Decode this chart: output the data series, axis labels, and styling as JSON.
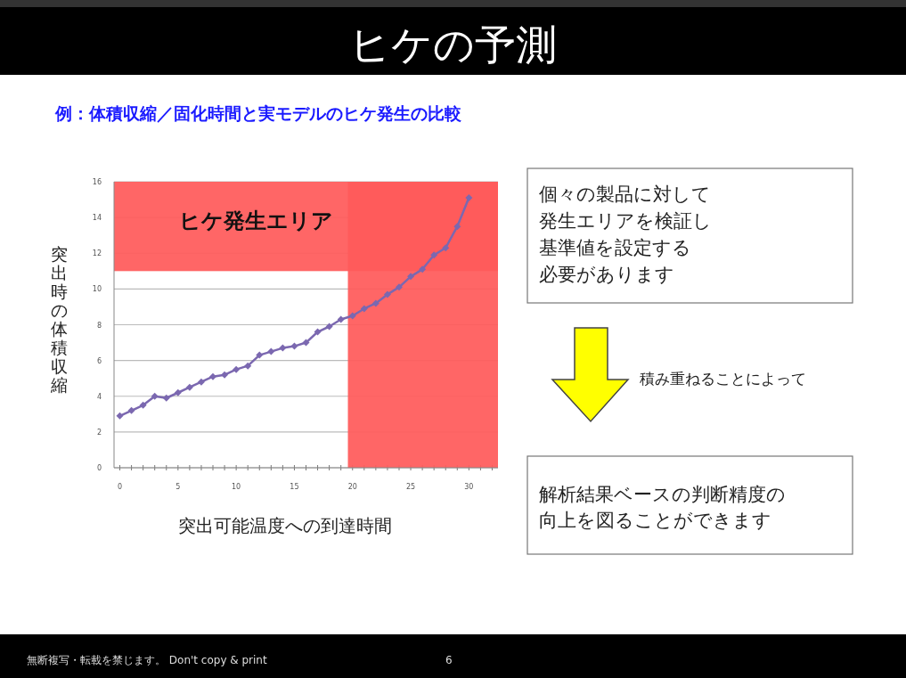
{
  "chart_data": {
    "type": "line",
    "title": "ヒケの予測",
    "subtitle": "例：体積収縮／固化時間と実モデルのヒケ発生の比較",
    "xlabel": "突出可能温度への到達時間",
    "ylabel": "突出時の体積収縮",
    "x": [
      0,
      1,
      2,
      3,
      4,
      5,
      6,
      7,
      8,
      9,
      10,
      11,
      12,
      13,
      14,
      15,
      16,
      17,
      18,
      19,
      20,
      21,
      22,
      23,
      24,
      25,
      26,
      27,
      28,
      29,
      30
    ],
    "series": [
      {
        "color": "#7b68b0",
        "values": [
          2.9,
          3.2,
          3.5,
          4.0,
          3.9,
          4.2,
          4.5,
          4.8,
          5.1,
          5.2,
          5.5,
          5.7,
          6.3,
          6.5,
          6.7,
          6.8,
          7.0,
          7.6,
          7.9,
          8.3,
          8.5,
          8.9,
          9.2,
          9.7,
          10.1,
          10.7,
          11.1,
          11.9,
          12.3,
          13.5,
          15.1
        ]
      }
    ],
    "xlim": [
      -0.5,
      32.5
    ],
    "ylim": [
      0,
      16
    ],
    "xticks": [
      0,
      {
        "value": 1,
        "label": null
      },
      {
        "value": 2,
        "label": null
      },
      {
        "value": 3,
        "label": null
      },
      {
        "value": 4,
        "label": null
      },
      5,
      {
        "value": 6,
        "label": null
      },
      {
        "value": 7,
        "label": null
      },
      {
        "value": 8,
        "label": null
      },
      {
        "value": 9,
        "label": null
      },
      10,
      {
        "value": 11,
        "label": null
      },
      {
        "value": 12,
        "label": null
      },
      {
        "value": 13,
        "label": null
      },
      {
        "value": 14,
        "label": null
      },
      15,
      {
        "value": 16,
        "label": null
      },
      {
        "value": 17,
        "label": null
      },
      {
        "value": 18,
        "label": null
      },
      {
        "value": 19,
        "label": null
      },
      20,
      {
        "value": 21,
        "label": null
      },
      {
        "value": 22,
        "label": null
      },
      {
        "value": 23,
        "label": null
      },
      {
        "value": 24,
        "label": null
      },
      25,
      {
        "value": 26,
        "label": null
      },
      {
        "value": 27,
        "label": null
      },
      {
        "value": 28,
        "label": null
      },
      {
        "value": 29,
        "label": null
      },
      30,
      {
        "value": 31,
        "label": null
      },
      {
        "value": 32,
        "label": null
      }
    ],
    "yticks": [
      0,
      2,
      4,
      6,
      8,
      10,
      12,
      14,
      16
    ],
    "bands": [
      {
        "axis": "y",
        "from": 11,
        "to": 16,
        "label": "ヒケ発生エリア",
        "color": "#ff5a5a"
      },
      {
        "axis": "x",
        "from": 19.6,
        "to": 32.5,
        "color": "#ff5a5a"
      }
    ],
    "grid": "y",
    "marker": "diamond",
    "line_style": "solid",
    "annotations": [
      "個々の製品に対して",
      "発生エリアを検証し",
      "基準値を設定する",
      "必要があります",
      "積み重ねることによって",
      "解析結果ベースの判断精度の",
      "向上を図ることができます",
      "無断複写・転載を禁じます。 Don't copy & print",
      "6"
    ]
  }
}
